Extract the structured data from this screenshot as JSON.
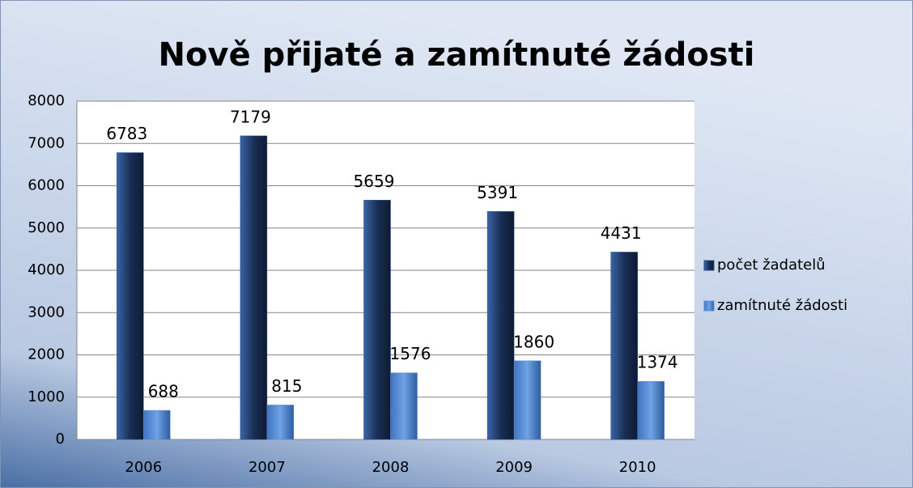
{
  "chart_data": {
    "type": "bar",
    "title": "Nově přijaté a zamítnuté žádosti",
    "categories": [
      "2006",
      "2007",
      "2008",
      "2009",
      "2010"
    ],
    "series": [
      {
        "name": "počet žadatelů",
        "color": "#2a4f8a",
        "values": [
          6783,
          7179,
          5659,
          5391,
          4431
        ]
      },
      {
        "name": "zamítnuté žádosti",
        "color": "#5b8fd6",
        "values": [
          688,
          815,
          1576,
          1860,
          1374
        ]
      }
    ],
    "ylim": [
      0,
      8000
    ],
    "yticks": [
      0,
      1000,
      2000,
      3000,
      4000,
      5000,
      6000,
      7000,
      8000
    ],
    "grid": true,
    "legend": "right"
  }
}
